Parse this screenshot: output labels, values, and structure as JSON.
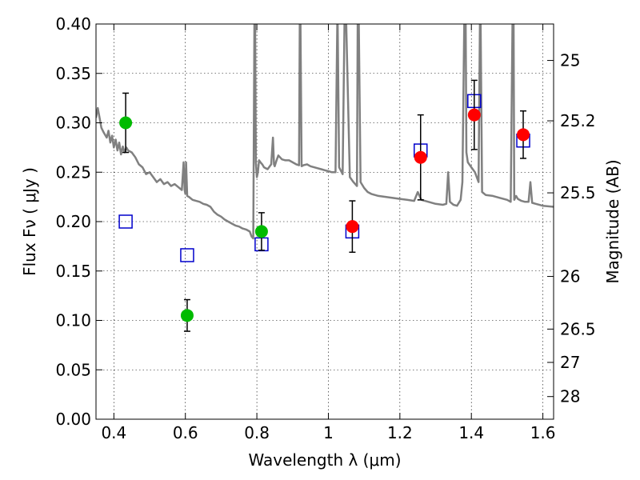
{
  "chart_data": {
    "type": "scatter",
    "title": "",
    "xlabel": "Wavelength  λ (μm)",
    "ylabel": "Flux  Fν  ( μJy )",
    "right_ylabel": "Magnitude (AB)",
    "xlim": [
      0.35,
      1.63
    ],
    "ylim": [
      0.0,
      0.4
    ],
    "grid": true,
    "xticks": [
      0.4,
      0.6,
      0.8,
      1.0,
      1.2,
      1.4,
      1.6
    ],
    "xtick_labels": [
      "0.4",
      "0.6",
      "0.8",
      "1",
      "1.2",
      "1.4",
      "1.6"
    ],
    "yticks": [
      0.0,
      0.05,
      0.1,
      0.15,
      0.2,
      0.25,
      0.3,
      0.35,
      0.4
    ],
    "ytick_labels": [
      "0.00",
      "0.05",
      "0.10",
      "0.15",
      "0.20",
      "0.25",
      "0.30",
      "0.35",
      "0.40"
    ],
    "mag_ticks": [
      {
        "label": "25",
        "flux": 0.3631
      },
      {
        "label": "25.2",
        "flux": 0.302
      },
      {
        "label": "25.5",
        "flux": 0.2291
      },
      {
        "label": "26",
        "flux": 0.1445
      },
      {
        "label": "26.5",
        "flux": 0.0912
      },
      {
        "label": "27",
        "flux": 0.0575
      },
      {
        "label": "28",
        "flux": 0.0229
      }
    ],
    "series": [
      {
        "name": "model spectrum",
        "kind": "line",
        "color": "#808080",
        "x": [
          0.35,
          0.355,
          0.36,
          0.365,
          0.372,
          0.38,
          0.385,
          0.39,
          0.395,
          0.4,
          0.405,
          0.41,
          0.415,
          0.42,
          0.425,
          0.43,
          0.435,
          0.44,
          0.45,
          0.46,
          0.47,
          0.48,
          0.49,
          0.5,
          0.51,
          0.52,
          0.53,
          0.54,
          0.55,
          0.56,
          0.57,
          0.58,
          0.59,
          0.595,
          0.598,
          0.6,
          0.602,
          0.605,
          0.61,
          0.62,
          0.63,
          0.64,
          0.65,
          0.66,
          0.67,
          0.68,
          0.69,
          0.7,
          0.71,
          0.72,
          0.73,
          0.74,
          0.75,
          0.76,
          0.77,
          0.78,
          0.785,
          0.79,
          0.793,
          0.795,
          0.797,
          0.8,
          0.803,
          0.806,
          0.81,
          0.815,
          0.82,
          0.83,
          0.84,
          0.845,
          0.848,
          0.85,
          0.855,
          0.86,
          0.87,
          0.88,
          0.89,
          0.9,
          0.91,
          0.918,
          0.92,
          0.922,
          0.925,
          0.93,
          0.94,
          0.95,
          0.96,
          0.97,
          0.98,
          0.99,
          1.0,
          1.01,
          1.02,
          1.025,
          1.026,
          1.03,
          1.04,
          1.045,
          1.05,
          1.06,
          1.07,
          1.08,
          1.082,
          1.085,
          1.09,
          1.1,
          1.11,
          1.12,
          1.14,
          1.16,
          1.18,
          1.2,
          1.22,
          1.24,
          1.25,
          1.255,
          1.26,
          1.27,
          1.28,
          1.3,
          1.32,
          1.33,
          1.335,
          1.34,
          1.35,
          1.36,
          1.37,
          1.375,
          1.38,
          1.382,
          1.384,
          1.386,
          1.39,
          1.4,
          1.41,
          1.42,
          1.424,
          1.426,
          1.43,
          1.44,
          1.46,
          1.48,
          1.5,
          1.51,
          1.515,
          1.518,
          1.52,
          1.525,
          1.53,
          1.54,
          1.55,
          1.56,
          1.565,
          1.57,
          1.58,
          1.6,
          1.63
        ],
        "y": [
          0.305,
          0.315,
          0.305,
          0.295,
          0.29,
          0.285,
          0.292,
          0.28,
          0.287,
          0.275,
          0.283,
          0.272,
          0.28,
          0.268,
          0.276,
          0.27,
          0.275,
          0.272,
          0.27,
          0.265,
          0.258,
          0.255,
          0.248,
          0.25,
          0.245,
          0.24,
          0.243,
          0.238,
          0.24,
          0.236,
          0.238,
          0.235,
          0.232,
          0.26,
          0.232,
          0.228,
          0.26,
          0.226,
          0.225,
          0.222,
          0.221,
          0.22,
          0.218,
          0.217,
          0.215,
          0.21,
          0.207,
          0.205,
          0.202,
          0.2,
          0.198,
          0.196,
          0.195,
          0.193,
          0.192,
          0.19,
          0.185,
          0.183,
          0.4,
          0.4,
          0.26,
          0.245,
          0.25,
          0.262,
          0.26,
          0.258,
          0.255,
          0.253,
          0.258,
          0.285,
          0.258,
          0.256,
          0.262,
          0.267,
          0.263,
          0.262,
          0.262,
          0.26,
          0.258,
          0.257,
          0.4,
          0.4,
          0.256,
          0.257,
          0.258,
          0.256,
          0.255,
          0.254,
          0.253,
          0.252,
          0.251,
          0.25,
          0.25,
          0.4,
          0.4,
          0.255,
          0.248,
          0.4,
          0.4,
          0.245,
          0.24,
          0.236,
          0.4,
          0.4,
          0.24,
          0.234,
          0.23,
          0.228,
          0.226,
          0.225,
          0.224,
          0.223,
          0.222,
          0.221,
          0.23,
          0.226,
          0.222,
          0.221,
          0.22,
          0.218,
          0.217,
          0.218,
          0.25,
          0.22,
          0.217,
          0.216,
          0.222,
          0.24,
          0.4,
          0.4,
          0.4,
          0.27,
          0.26,
          0.255,
          0.25,
          0.24,
          0.4,
          0.4,
          0.23,
          0.227,
          0.226,
          0.224,
          0.222,
          0.22,
          0.4,
          0.4,
          0.222,
          0.226,
          0.223,
          0.221,
          0.22,
          0.22,
          0.24,
          0.219,
          0.218,
          0.216,
          0.215
        ]
      },
      {
        "name": "observed (green)",
        "kind": "circle",
        "color": "#00bb00",
        "x": [
          0.433,
          0.605,
          0.813
        ],
        "y": [
          0.3,
          0.105,
          0.19
        ],
        "yerr": [
          0.03,
          0.016,
          0.019
        ]
      },
      {
        "name": "observed (red)",
        "kind": "circle",
        "color": "#ff0000",
        "x": [
          1.067,
          1.258,
          1.408,
          1.545
        ],
        "y": [
          0.195,
          0.265,
          0.308,
          0.288
        ],
        "yerr": [
          0.026,
          0.043,
          0.035,
          0.024
        ]
      },
      {
        "name": "model photometry",
        "kind": "square",
        "color": "#0000cc",
        "x": [
          0.433,
          0.605,
          0.813,
          1.067,
          1.258,
          1.408,
          1.545
        ],
        "y": [
          0.2,
          0.166,
          0.177,
          0.19,
          0.272,
          0.322,
          0.282
        ]
      }
    ]
  }
}
